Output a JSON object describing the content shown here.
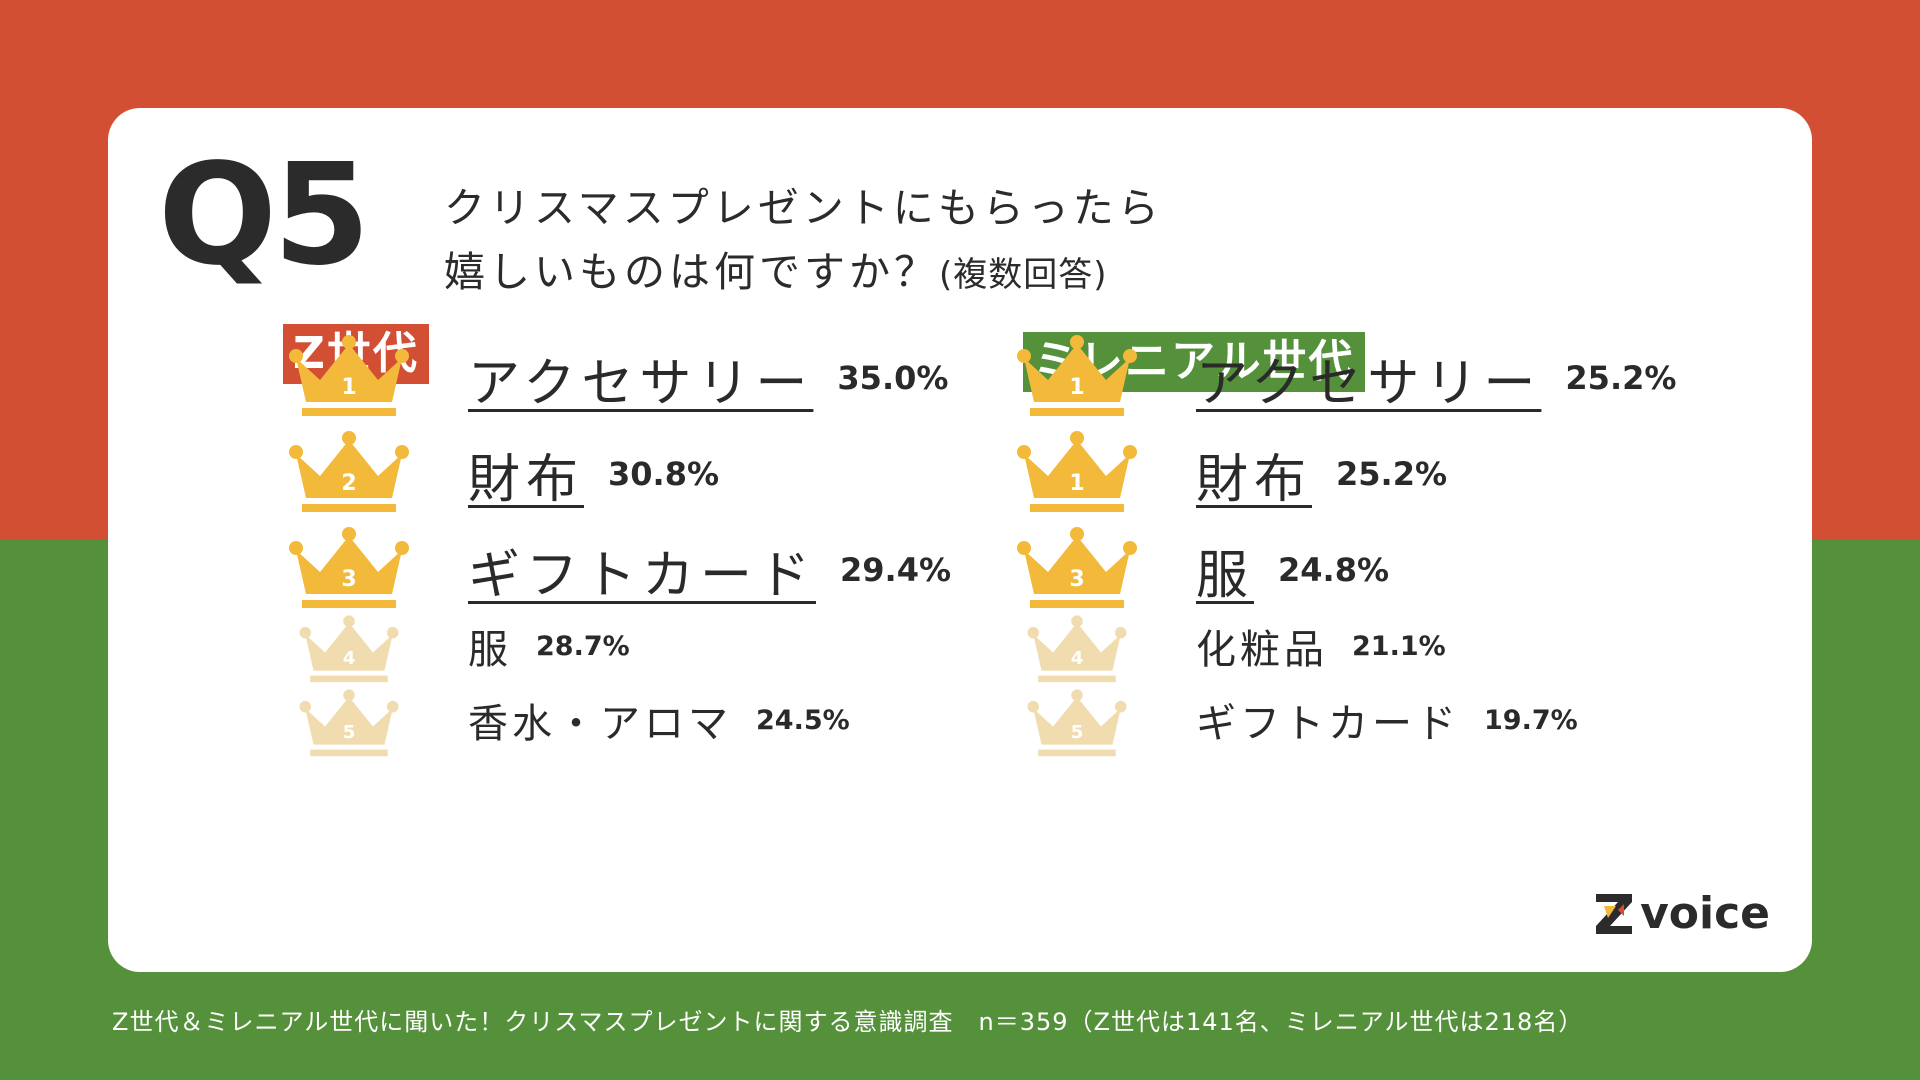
{
  "question": {
    "number": "Q5",
    "line1": "クリスマスプレゼントにもらったら",
    "line2": "嬉しいものは何ですか？",
    "note": "(複数回答)"
  },
  "groups": {
    "z": {
      "label": "Z世代",
      "color": "#d24f33",
      "items": [
        {
          "rank": "1",
          "name": "アクセサリー",
          "pct": "35.0%"
        },
        {
          "rank": "2",
          "name": "財布",
          "pct": "30.8%"
        },
        {
          "rank": "3",
          "name": "ギフトカード",
          "pct": "29.4%"
        },
        {
          "rank": "4",
          "name": "服",
          "pct": "28.7%"
        },
        {
          "rank": "5",
          "name": "香水・アロマ",
          "pct": "24.5%"
        }
      ]
    },
    "m": {
      "label": "ミレニアル世代",
      "color": "#54913a",
      "items": [
        {
          "rank": "1",
          "name": "アクセサリー",
          "pct": "25.2%"
        },
        {
          "rank": "1",
          "name": "財布",
          "pct": "25.2%"
        },
        {
          "rank": "3",
          "name": "服",
          "pct": "24.8%"
        },
        {
          "rank": "4",
          "name": "化粧品",
          "pct": "21.1%"
        },
        {
          "rank": "5",
          "name": "ギフトカード",
          "pct": "19.7%"
        }
      ]
    }
  },
  "colors": {
    "crown_gold": "#f2b93b",
    "crown_pale": "#f1dcb0",
    "top_band": "#d24f33",
    "bottom_band": "#54913a"
  },
  "logo": {
    "text": "voice",
    "icon": "z-logo-icon"
  },
  "footer": "Z世代＆ミレニアル世代に聞いた！クリスマスプレゼントに関する意識調査　n＝359（Z世代は141名、ミレニアル世代は218名）"
}
